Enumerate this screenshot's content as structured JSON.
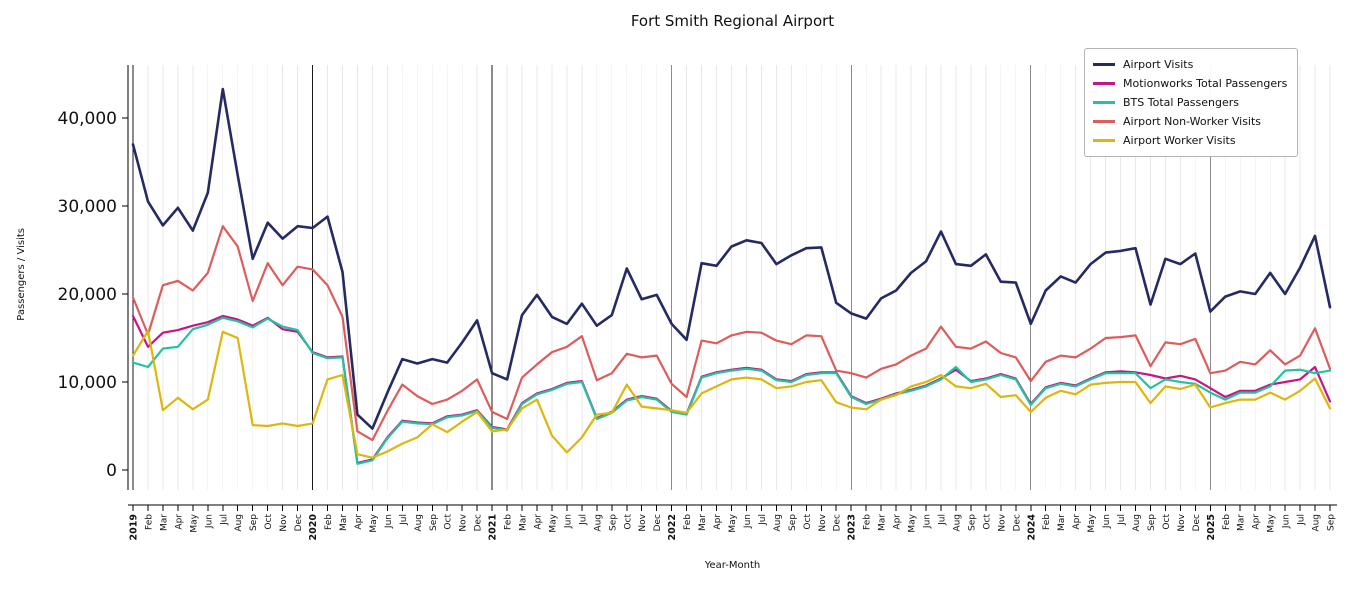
{
  "title": "Fort Smith Regional Airport",
  "chart_data": {
    "type": "line",
    "title": "Fort Smith Regional Airport",
    "xlabel": "Year-Month",
    "ylabel": "Passengers / Visits",
    "ylim": [
      0,
      46000
    ],
    "yticks": [
      0,
      10000,
      20000,
      30000,
      40000
    ],
    "grid": "vertical gridline per month, dark vertical line at each January (year boundary)",
    "legend_position": "upper right",
    "x": [
      "2019",
      "Feb",
      "Mar",
      "Apr",
      "May",
      "Jun",
      "Jul",
      "Aug",
      "Sep",
      "Oct",
      "Nov",
      "Dec",
      "2020",
      "Feb",
      "Mar",
      "Apr",
      "May",
      "Jun",
      "Jul",
      "Aug",
      "Sep",
      "Oct",
      "Nov",
      "Dec",
      "2021",
      "Feb",
      "Mar",
      "Apr",
      "May",
      "Jun",
      "Jul",
      "Aug",
      "Sep",
      "Oct",
      "Nov",
      "Dec",
      "2022",
      "Feb",
      "Mar",
      "Apr",
      "May",
      "Jun",
      "Jul",
      "Aug",
      "Sep",
      "Oct",
      "Nov",
      "Dec",
      "2023",
      "Feb",
      "Mar",
      "Apr",
      "May",
      "Jun",
      "Jul",
      "Aug",
      "Sep",
      "Oct",
      "Nov",
      "Dec",
      "2024",
      "Feb",
      "Mar",
      "Apr",
      "May",
      "Jun",
      "Jul",
      "Aug",
      "Sep",
      "Oct",
      "Nov",
      "Dec",
      "2025",
      "Feb",
      "Mar",
      "Apr",
      "May",
      "Jun",
      "Jul",
      "Aug",
      "Sep"
    ],
    "series": [
      {
        "name": "Airport Visits",
        "color": "#252a63",
        "line_width": 2.6,
        "values": [
          37000,
          30500,
          27800,
          29800,
          27200,
          31500,
          43300,
          33500,
          24000,
          28100,
          26300,
          27700,
          27500,
          28800,
          22500,
          6300,
          4700,
          8800,
          12600,
          12100,
          12600,
          12200,
          14500,
          17000,
          11000,
          10300,
          17600,
          19900,
          17400,
          16600,
          18900,
          16400,
          17600,
          22900,
          19400,
          19900,
          16600,
          14800,
          23500,
          23200,
          25400,
          26100,
          25800,
          23400,
          24400,
          25200,
          25300,
          19000,
          17800,
          17200,
          19500,
          20400,
          22400,
          23700,
          27100,
          23400,
          23200,
          24500,
          21400,
          21300,
          16600,
          20400,
          22000,
          21300,
          23400,
          24700,
          24900,
          25200,
          18800,
          24000,
          23400,
          24600,
          18000,
          19700,
          20300,
          20000,
          22400,
          20000,
          23000,
          26600,
          18500
        ]
      },
      {
        "name": "Motionworks Total Passengers",
        "color": "#c71585",
        "line_width": 2.2,
        "values": [
          17500,
          14000,
          15600,
          15900,
          16400,
          16800,
          17500,
          17100,
          16400,
          17300,
          16000,
          15700,
          13400,
          12800,
          12900,
          800,
          1200,
          3700,
          5600,
          5400,
          5300,
          6100,
          6300,
          6800,
          4900,
          4600,
          7600,
          8700,
          9200,
          9900,
          10100,
          5900,
          6600,
          8000,
          8400,
          8100,
          6700,
          6400,
          10600,
          11100,
          11400,
          11600,
          11400,
          10300,
          10100,
          10900,
          11100,
          11100,
          8400,
          7600,
          8100,
          8700,
          9100,
          9600,
          10400,
          11400,
          10100,
          10400,
          10900,
          10400,
          7500,
          9400,
          9900,
          9600,
          10400,
          11100,
          11200,
          11100,
          10800,
          10400,
          10700,
          10300,
          9300,
          8300,
          9000,
          9000,
          9700,
          10000,
          10300,
          11700,
          7800
        ]
      },
      {
        "name": "BTS Total Passengers",
        "color": "#24c2a0",
        "line_width": 2.2,
        "values": [
          12200,
          11700,
          13800,
          14000,
          16000,
          16500,
          17300,
          16900,
          16200,
          17200,
          16300,
          15900,
          13300,
          12700,
          12800,
          700,
          1100,
          3600,
          5500,
          5300,
          5200,
          6000,
          6200,
          6700,
          4800,
          4500,
          7500,
          8600,
          9100,
          9800,
          10000,
          5800,
          6500,
          7900,
          8300,
          8000,
          6600,
          6300,
          10500,
          11000,
          11300,
          11500,
          11300,
          10200,
          10000,
          10800,
          11000,
          11000,
          8300,
          7500,
          8000,
          8600,
          9000,
          9500,
          10300,
          11700,
          10000,
          10300,
          10800,
          10300,
          7400,
          9300,
          9800,
          9500,
          10300,
          11000,
          11000,
          11000,
          9300,
          10300,
          10000,
          9800,
          8800,
          8000,
          8800,
          8800,
          9500,
          11300,
          11400,
          11000,
          11300
        ]
      },
      {
        "name": "Airport Non-Worker Visits",
        "color": "#dd5c5c",
        "line_width": 2.2,
        "values": [
          19600,
          15400,
          21000,
          21500,
          20400,
          22400,
          27700,
          25400,
          19200,
          23500,
          21000,
          23100,
          22800,
          21000,
          17400,
          4400,
          3400,
          6700,
          9700,
          8400,
          7500,
          8000,
          9000,
          10300,
          6600,
          5800,
          10500,
          12000,
          13400,
          14000,
          15200,
          10200,
          11000,
          13200,
          12800,
          13000,
          9800,
          8300,
          14700,
          14400,
          15300,
          15700,
          15600,
          14700,
          14300,
          15300,
          15200,
          11300,
          11000,
          10500,
          11500,
          12000,
          13000,
          13800,
          16300,
          14000,
          13800,
          14600,
          13300,
          12800,
          10100,
          12300,
          13000,
          12800,
          13800,
          15000,
          15100,
          15300,
          11800,
          14500,
          14300,
          14900,
          11000,
          11300,
          12300,
          12000,
          13600,
          12000,
          13000,
          16100,
          11500
        ]
      },
      {
        "name": "Airport Worker Visits",
        "color": "#deb60d",
        "line_width": 2.2,
        "values": [
          13000,
          15800,
          6800,
          8200,
          6900,
          8000,
          15700,
          15000,
          5100,
          5000,
          5300,
          5000,
          5300,
          10300,
          10800,
          1800,
          1400,
          2100,
          3000,
          3700,
          5200,
          4300,
          5500,
          6600,
          4400,
          4600,
          7000,
          8000,
          3900,
          2000,
          3700,
          6300,
          6500,
          9700,
          7200,
          7000,
          6800,
          6500,
          8700,
          9500,
          10300,
          10500,
          10300,
          9300,
          9500,
          10000,
          10200,
          7700,
          7100,
          6900,
          8000,
          8500,
          9500,
          10000,
          10800,
          9500,
          9300,
          9800,
          8300,
          8500,
          6600,
          8200,
          9000,
          8600,
          9700,
          9900,
          10000,
          10000,
          7600,
          9500,
          9200,
          9700,
          7100,
          7600,
          8000,
          8000,
          8800,
          8000,
          9000,
          10400,
          7000
        ]
      }
    ]
  }
}
